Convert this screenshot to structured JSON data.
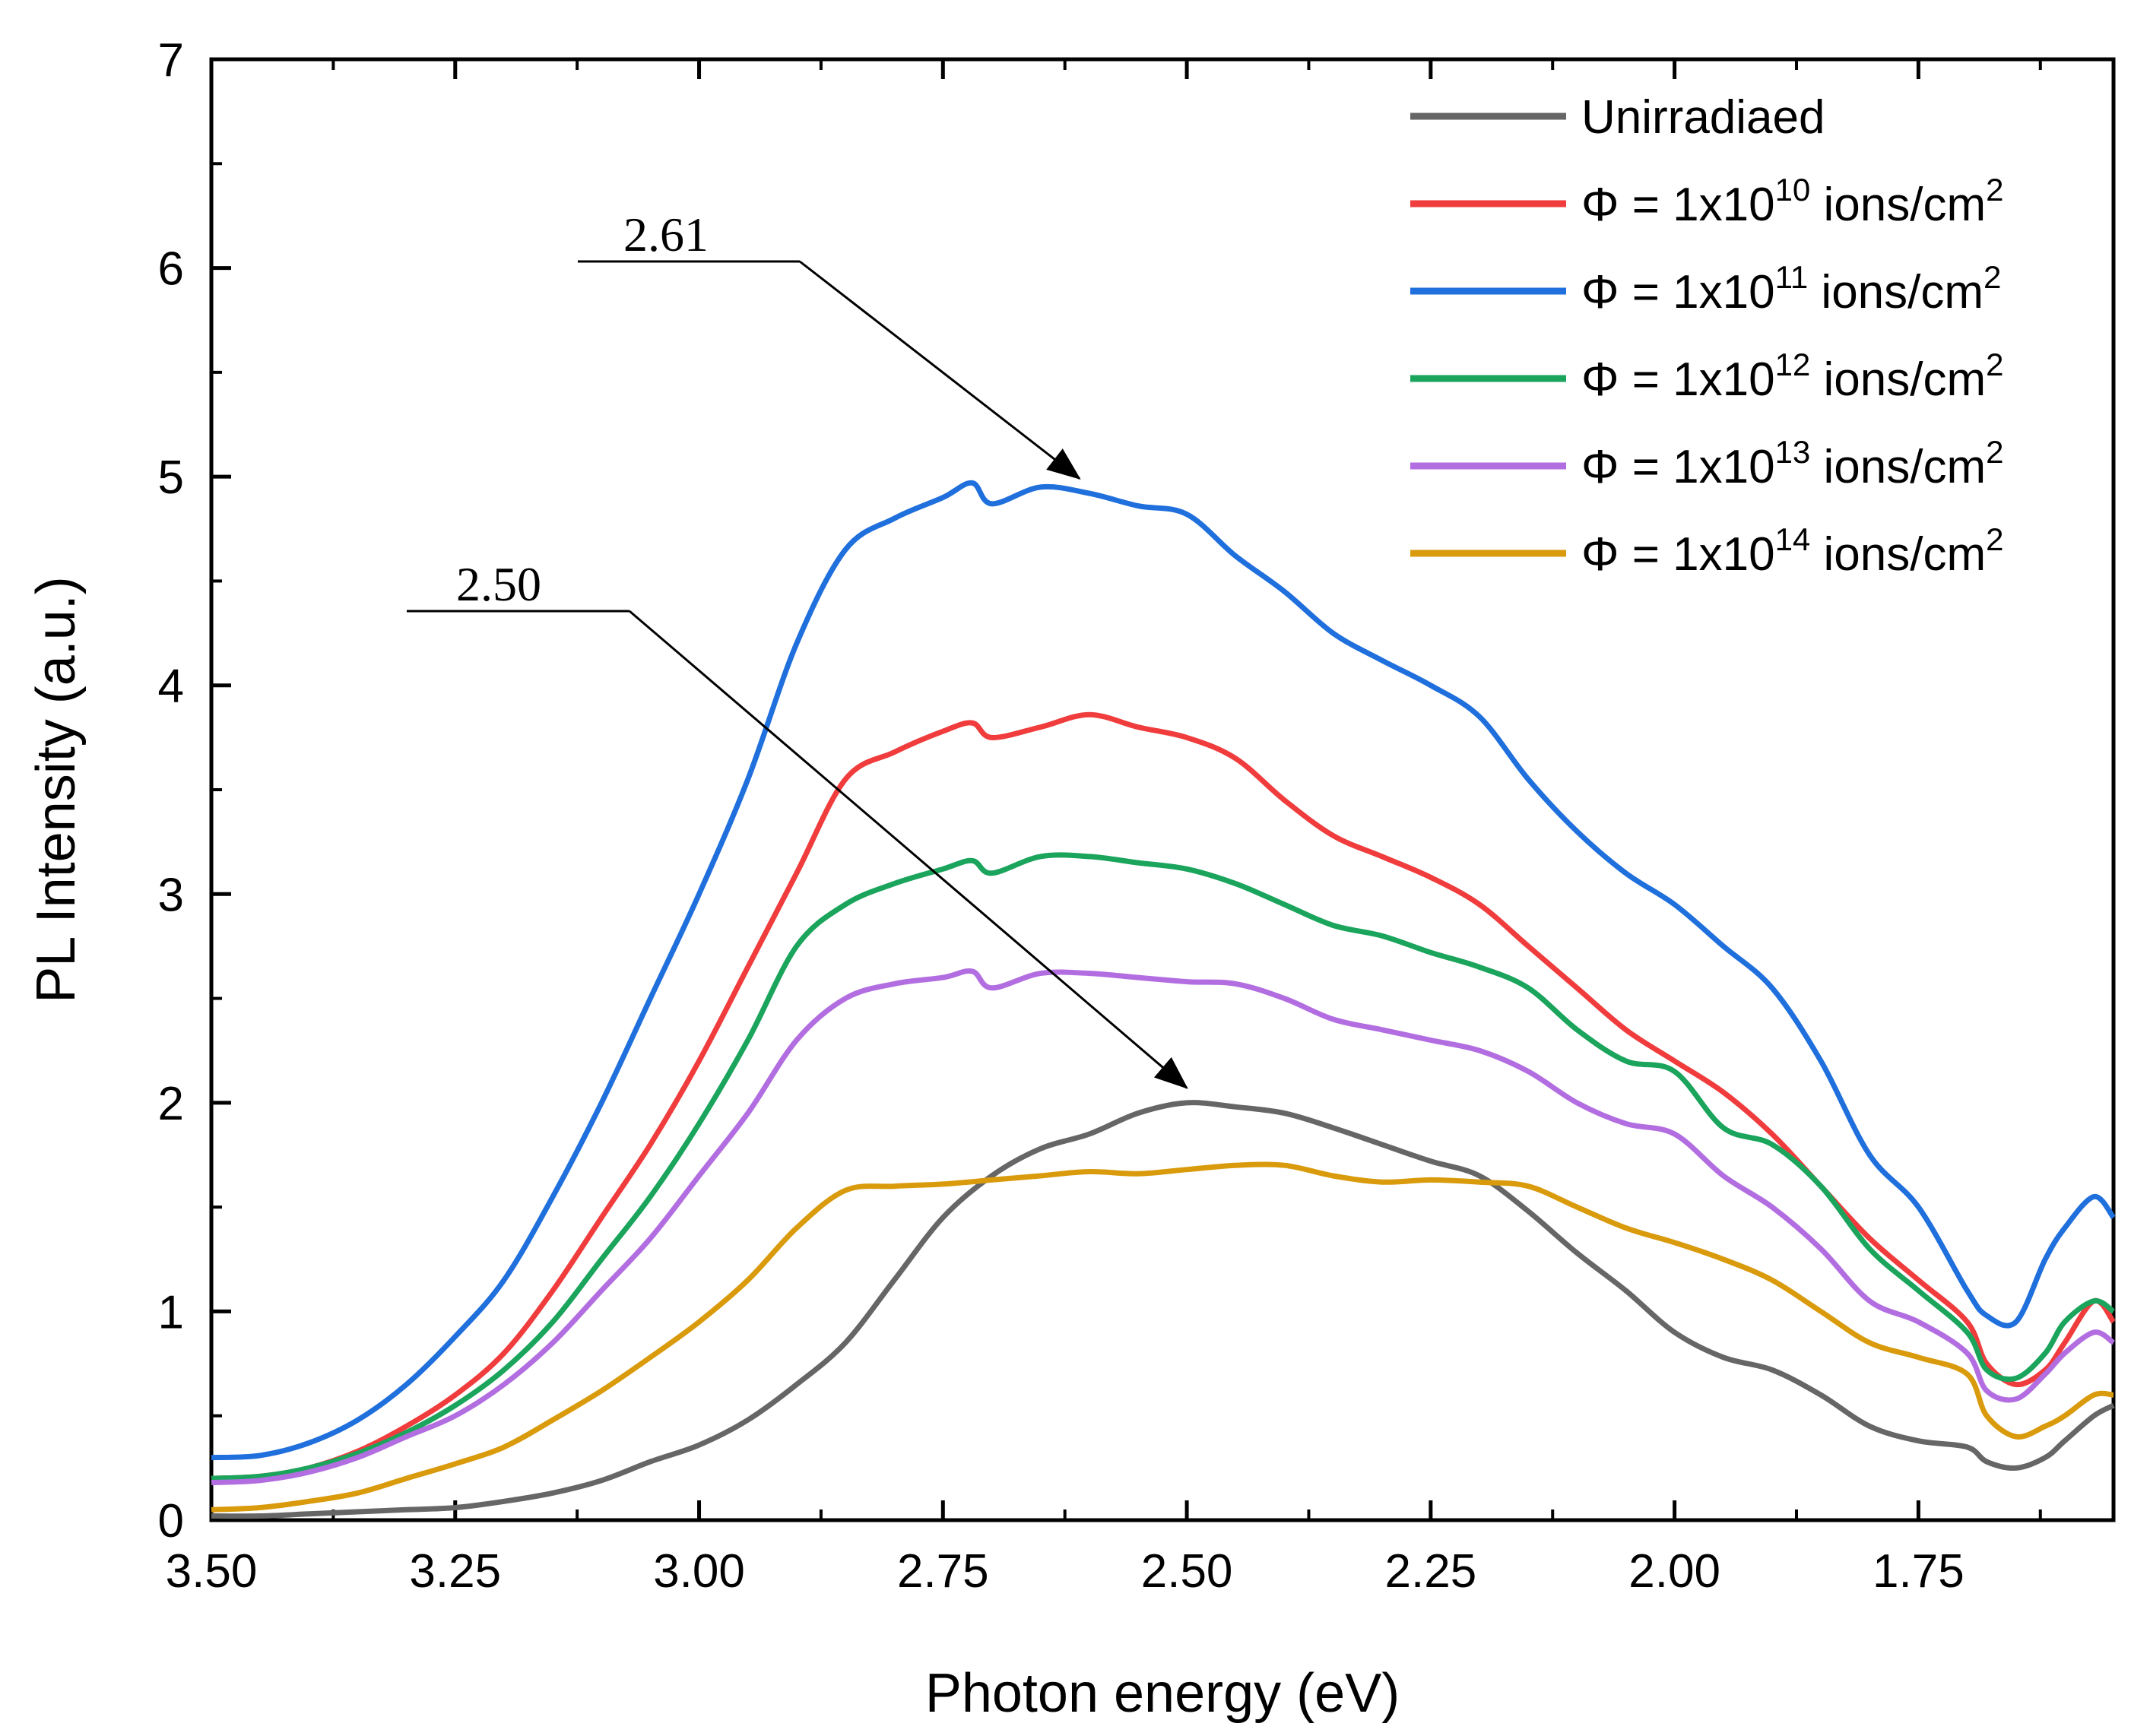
{
  "chart_data": {
    "type": "line",
    "title": "",
    "xlabel": "Photon energy (eV)",
    "ylabel": "PL  Intensity (a.u.)",
    "xlim": [
      3.5,
      1.55
    ],
    "ylim": [
      0,
      7
    ],
    "x_reversed": true,
    "x_ticks": [
      "3.50",
      "3.25",
      "3.00",
      "2.75",
      "2.50",
      "2.25",
      "2.00",
      "1.75"
    ],
    "y_ticks": [
      "0",
      "1",
      "2",
      "3",
      "4",
      "5",
      "6",
      "7"
    ],
    "legend_position": "top-right",
    "series": [
      {
        "name": "Unirradiaed",
        "legend": {
          "prefix": "Unirradiaed",
          "exp": "",
          "suffix": ""
        },
        "color": "#666666",
        "x": [
          3.5,
          3.45,
          3.4,
          3.35,
          3.3,
          3.25,
          3.2,
          3.15,
          3.1,
          3.05,
          3.0,
          2.95,
          2.9,
          2.85,
          2.8,
          2.75,
          2.7,
          2.65,
          2.6,
          2.55,
          2.5,
          2.45,
          2.4,
          2.35,
          2.3,
          2.25,
          2.2,
          2.15,
          2.1,
          2.05,
          2.0,
          1.95,
          1.9,
          1.85,
          1.8,
          1.75,
          1.7,
          1.68,
          1.65,
          1.62,
          1.6,
          1.57,
          1.55
        ],
        "y": [
          0.02,
          0.02,
          0.03,
          0.04,
          0.05,
          0.06,
          0.09,
          0.13,
          0.19,
          0.28,
          0.36,
          0.48,
          0.65,
          0.85,
          1.15,
          1.45,
          1.65,
          1.78,
          1.85,
          1.95,
          2.0,
          1.98,
          1.95,
          1.88,
          1.8,
          1.72,
          1.65,
          1.48,
          1.28,
          1.1,
          0.9,
          0.78,
          0.72,
          0.6,
          0.45,
          0.38,
          0.35,
          0.28,
          0.25,
          0.3,
          0.38,
          0.5,
          0.55
        ]
      },
      {
        "name": "Φ = 1x10^10 ions/cm^2",
        "legend": {
          "prefix": "Φ = 1x10",
          "exp": "10",
          "suffix": " ions/cm",
          "suffix_exp": "2"
        },
        "color": "#f03c3c",
        "x": [
          3.5,
          3.45,
          3.4,
          3.35,
          3.3,
          3.25,
          3.2,
          3.15,
          3.1,
          3.05,
          3.0,
          2.95,
          2.9,
          2.85,
          2.8,
          2.75,
          2.72,
          2.7,
          2.65,
          2.6,
          2.55,
          2.5,
          2.45,
          2.4,
          2.35,
          2.3,
          2.25,
          2.2,
          2.15,
          2.1,
          2.05,
          2.0,
          1.95,
          1.9,
          1.85,
          1.8,
          1.75,
          1.7,
          1.68,
          1.65,
          1.62,
          1.6,
          1.57,
          1.55
        ],
        "y": [
          0.2,
          0.21,
          0.25,
          0.33,
          0.45,
          0.6,
          0.8,
          1.1,
          1.45,
          1.8,
          2.2,
          2.65,
          3.1,
          3.55,
          3.68,
          3.78,
          3.82,
          3.75,
          3.8,
          3.86,
          3.8,
          3.75,
          3.65,
          3.45,
          3.28,
          3.18,
          3.08,
          2.95,
          2.75,
          2.55,
          2.35,
          2.2,
          2.05,
          1.85,
          1.6,
          1.35,
          1.15,
          0.95,
          0.75,
          0.65,
          0.72,
          0.85,
          1.05,
          0.95
        ]
      },
      {
        "name": "Φ = 1x10^11 ions/cm^2",
        "legend": {
          "prefix": "Φ = 1x10",
          "exp": "11",
          "suffix": " ions/cm",
          "suffix_exp": "2"
        },
        "color": "#1f6fdc",
        "x": [
          3.5,
          3.45,
          3.4,
          3.35,
          3.3,
          3.25,
          3.2,
          3.15,
          3.1,
          3.05,
          3.0,
          2.95,
          2.9,
          2.85,
          2.8,
          2.75,
          2.72,
          2.7,
          2.65,
          2.6,
          2.55,
          2.5,
          2.45,
          2.4,
          2.35,
          2.3,
          2.25,
          2.2,
          2.15,
          2.1,
          2.05,
          2.0,
          1.95,
          1.9,
          1.85,
          1.8,
          1.75,
          1.7,
          1.68,
          1.65,
          1.62,
          1.6,
          1.57,
          1.55
        ],
        "y": [
          0.3,
          0.31,
          0.37,
          0.48,
          0.65,
          0.88,
          1.15,
          1.55,
          2.0,
          2.5,
          3.0,
          3.55,
          4.2,
          4.65,
          4.8,
          4.9,
          4.97,
          4.87,
          4.95,
          4.92,
          4.86,
          4.82,
          4.62,
          4.45,
          4.25,
          4.12,
          4.0,
          3.85,
          3.55,
          3.3,
          3.1,
          2.95,
          2.75,
          2.55,
          2.2,
          1.75,
          1.5,
          1.1,
          0.98,
          0.95,
          1.25,
          1.4,
          1.55,
          1.45
        ]
      },
      {
        "name": "Φ = 1x10^12 ions/cm^2",
        "legend": {
          "prefix": "Φ = 1x10",
          "exp": "12",
          "suffix": " ions/cm",
          "suffix_exp": "2"
        },
        "color": "#1aa45c",
        "x": [
          3.5,
          3.45,
          3.4,
          3.35,
          3.3,
          3.25,
          3.2,
          3.15,
          3.1,
          3.05,
          3.0,
          2.95,
          2.9,
          2.85,
          2.8,
          2.75,
          2.72,
          2.7,
          2.65,
          2.6,
          2.55,
          2.5,
          2.45,
          2.4,
          2.35,
          2.3,
          2.25,
          2.2,
          2.15,
          2.1,
          2.05,
          2.0,
          1.95,
          1.9,
          1.85,
          1.8,
          1.75,
          1.7,
          1.68,
          1.65,
          1.62,
          1.6,
          1.57,
          1.55
        ],
        "y": [
          0.2,
          0.21,
          0.25,
          0.32,
          0.42,
          0.55,
          0.72,
          0.95,
          1.25,
          1.55,
          1.9,
          2.3,
          2.75,
          2.95,
          3.05,
          3.12,
          3.16,
          3.1,
          3.18,
          3.18,
          3.15,
          3.12,
          3.05,
          2.95,
          2.85,
          2.8,
          2.72,
          2.65,
          2.55,
          2.35,
          2.2,
          2.15,
          1.88,
          1.8,
          1.6,
          1.3,
          1.1,
          0.9,
          0.72,
          0.68,
          0.8,
          0.95,
          1.05,
          1.0
        ]
      },
      {
        "name": "Φ = 1x10^13 ions/cm^2",
        "legend": {
          "prefix": "Φ = 1x10",
          "exp": "13",
          "suffix": " ions/cm",
          "suffix_exp": "2"
        },
        "color": "#b26ee0",
        "x": [
          3.5,
          3.45,
          3.4,
          3.35,
          3.3,
          3.25,
          3.2,
          3.15,
          3.1,
          3.05,
          3.0,
          2.95,
          2.9,
          2.85,
          2.8,
          2.75,
          2.72,
          2.7,
          2.65,
          2.6,
          2.55,
          2.5,
          2.45,
          2.4,
          2.35,
          2.3,
          2.25,
          2.2,
          2.15,
          2.1,
          2.05,
          2.0,
          1.95,
          1.9,
          1.85,
          1.8,
          1.75,
          1.7,
          1.68,
          1.65,
          1.62,
          1.6,
          1.57,
          1.55
        ],
        "y": [
          0.18,
          0.19,
          0.23,
          0.3,
          0.4,
          0.5,
          0.65,
          0.85,
          1.1,
          1.35,
          1.65,
          1.95,
          2.3,
          2.5,
          2.57,
          2.6,
          2.63,
          2.55,
          2.62,
          2.62,
          2.6,
          2.58,
          2.57,
          2.5,
          2.4,
          2.35,
          2.3,
          2.25,
          2.15,
          2.0,
          1.9,
          1.85,
          1.65,
          1.5,
          1.3,
          1.05,
          0.95,
          0.8,
          0.62,
          0.58,
          0.7,
          0.8,
          0.9,
          0.85
        ]
      },
      {
        "name": "Φ = 1x10^14 ions/cm^2",
        "legend": {
          "prefix": "Φ = 1x10",
          "exp": "14",
          "suffix": " ions/cm",
          "suffix_exp": "2"
        },
        "color": "#d99a0c",
        "x": [
          3.5,
          3.45,
          3.4,
          3.35,
          3.3,
          3.25,
          3.2,
          3.15,
          3.1,
          3.05,
          3.0,
          2.95,
          2.9,
          2.85,
          2.8,
          2.75,
          2.7,
          2.65,
          2.6,
          2.55,
          2.5,
          2.45,
          2.4,
          2.35,
          2.3,
          2.25,
          2.2,
          2.15,
          2.1,
          2.05,
          2.0,
          1.95,
          1.9,
          1.85,
          1.8,
          1.75,
          1.7,
          1.68,
          1.65,
          1.62,
          1.6,
          1.57,
          1.55
        ],
        "y": [
          0.05,
          0.06,
          0.09,
          0.13,
          0.2,
          0.27,
          0.35,
          0.48,
          0.62,
          0.78,
          0.95,
          1.15,
          1.4,
          1.58,
          1.6,
          1.61,
          1.63,
          1.65,
          1.67,
          1.66,
          1.68,
          1.7,
          1.7,
          1.65,
          1.62,
          1.63,
          1.62,
          1.6,
          1.5,
          1.4,
          1.33,
          1.25,
          1.15,
          1.0,
          0.85,
          0.78,
          0.7,
          0.5,
          0.4,
          0.45,
          0.5,
          0.6,
          0.6
        ]
      }
    ],
    "annotations": [
      {
        "text": "2.61",
        "target_x": 2.61,
        "target_y": 4.94
      },
      {
        "text": "2.50",
        "target_x": 2.5,
        "target_y": 2.02
      }
    ]
  }
}
